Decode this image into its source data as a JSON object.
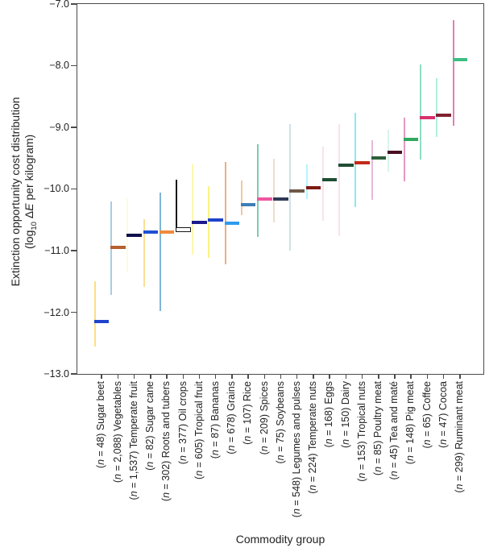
{
  "figure": {
    "style": {
      "axis_color": "#4B4B4B",
      "text_color": "#222222",
      "background": "#FFFFFF"
    },
    "y_axis": {
      "title_line1": "Extinction opportunity cost distribution",
      "log_prefix": "(log",
      "log_sub": "10",
      "delta": " Δ",
      "e_italic": "E",
      "unit_suffix": " per kilogram)"
    },
    "x_axis": {
      "title": "Commodity group"
    }
  },
  "chart_data": {
    "type": "bar",
    "variant": "floating-range-bars-with-median-line",
    "title": "",
    "xlabel": "Commodity group",
    "ylabel": "Extinction opportunity cost distribution (log10 ΔE per kilogram)",
    "ylim": [
      -13.0,
      -7.0
    ],
    "yticks": [
      -7.0,
      -8.0,
      -9.0,
      -10.0,
      -11.0,
      -12.0,
      -13.0
    ],
    "ytick_labels": [
      "−7.0",
      "−8.0",
      "−9.0",
      "−10.0",
      "−11.0",
      "−12.0",
      "−13.0"
    ],
    "grid": false,
    "legend": false,
    "bars": [
      {
        "label": "Sugar beet",
        "n": "48",
        "range_low": -12.55,
        "range_high": -11.5,
        "median": -12.15,
        "fill": "#FECB32",
        "median_color": "#1F43CC"
      },
      {
        "label": "Vegetables",
        "n": "2,088",
        "range_low": -11.72,
        "range_high": -10.2,
        "median": -10.95,
        "fill": "#72AFD3",
        "median_color": "#B5602F"
      },
      {
        "label": "Temperate fruit",
        "n": "1,537",
        "range_low": -11.35,
        "range_high": -10.14,
        "median": -10.75,
        "fill": "#FBF8CF",
        "median_color": "#10104A"
      },
      {
        "label": "Sugar cane",
        "n": "82",
        "range_low": -11.59,
        "range_high": -10.49,
        "median": -10.7,
        "fill": "#F8CC58",
        "median_color": "#1E4FD6"
      },
      {
        "label": "Roots and tubers",
        "n": "302",
        "range_low": -11.98,
        "range_high": -10.06,
        "median": -10.7,
        "fill": "#3287C1",
        "median_color": "#F08A3D"
      },
      {
        "label": "Oil crops",
        "n": "377",
        "range_low": -10.7,
        "range_high": -9.85,
        "median": -10.66,
        "fill": "#333333",
        "median_color": "#FFFFFF",
        "median_outlined": true,
        "border": "#161616"
      },
      {
        "label": "Tropical fruit",
        "n": "605",
        "range_low": -11.07,
        "range_high": -9.6,
        "median": -10.54,
        "fill": "#FDF37C",
        "median_color": "#1A1A8C"
      },
      {
        "label": "Bananas",
        "n": "87",
        "range_low": -11.12,
        "range_high": -9.96,
        "median": -10.5,
        "fill": "#FCEA3F",
        "median_color": "#1F43CC"
      },
      {
        "label": "Grains",
        "n": "678",
        "range_low": -11.22,
        "range_high": -9.56,
        "median": -10.55,
        "fill": "#DC8034",
        "median_color": "#2E9AEF"
      },
      {
        "label": "Rice",
        "n": "107",
        "range_low": -10.43,
        "range_high": -9.86,
        "median": -10.25,
        "fill": "#E7A669",
        "median_color": "#3D7EB8"
      },
      {
        "label": "Spices",
        "n": "209",
        "range_low": -10.78,
        "range_high": -9.28,
        "median": -10.16,
        "fill": "#31A88A",
        "median_color": "#F0559F"
      },
      {
        "label": "Soybeans",
        "n": "75",
        "range_low": -10.54,
        "range_high": -9.51,
        "median": -10.17,
        "fill": "#E5C8A9",
        "median_color": "#2E3A56"
      },
      {
        "label": "Legumes and pulses",
        "n": "548",
        "range_low": -11.0,
        "range_high": -8.95,
        "median": -10.03,
        "fill": "#B4CDDA",
        "median_color": "#6F5847"
      },
      {
        "label": "Temperate nuts",
        "n": "224",
        "range_low": -10.17,
        "range_high": -9.6,
        "median": -9.98,
        "fill": "#84F0FD",
        "median_color": "#7E1A14"
      },
      {
        "label": "Eggs",
        "n": "168",
        "range_low": -10.52,
        "range_high": -9.31,
        "median": -9.85,
        "fill": "#F9CFE7",
        "median_color": "#1E4D33"
      },
      {
        "label": "Dairy",
        "n": "150",
        "range_low": -10.77,
        "range_high": -8.95,
        "median": -9.62,
        "fill": "#F9CFE7",
        "median_color": "#1E4D33"
      },
      {
        "label": "Tropical nuts",
        "n": "153",
        "range_low": -10.29,
        "range_high": -8.77,
        "median": -9.58,
        "fill": "#4ADAF6",
        "median_color": "#C22A1A"
      },
      {
        "label": "Poultry meat",
        "n": "85",
        "range_low": -10.18,
        "range_high": -9.21,
        "median": -9.5,
        "fill": "#D692C2",
        "median_color": "#2C5F3A"
      },
      {
        "label": "Tea and maté",
        "n": "45",
        "range_low": -9.72,
        "range_high": -9.04,
        "median": -9.4,
        "fill": "#BFF0DA",
        "median_color": "#4A0E25"
      },
      {
        "label": "Pig meat",
        "n": "148",
        "range_low": -9.88,
        "range_high": -8.85,
        "median": -9.2,
        "fill": "#D65A9F",
        "median_color": "#2FA95D"
      },
      {
        "label": "Coffee",
        "n": "65",
        "range_low": -9.53,
        "range_high": -7.98,
        "median": -8.85,
        "fill": "#4AC8A2",
        "median_color": "#D6336C"
      },
      {
        "label": "Cocoa",
        "n": "47",
        "range_low": -9.16,
        "range_high": -8.21,
        "median": -8.8,
        "fill": "#80E6C2",
        "median_color": "#7E2230"
      },
      {
        "label": "Ruminant meat",
        "n": "299",
        "range_low": -8.98,
        "range_high": -7.26,
        "median": -7.9,
        "fill": "#D2308A",
        "median_color": "#3DBE82"
      }
    ]
  }
}
